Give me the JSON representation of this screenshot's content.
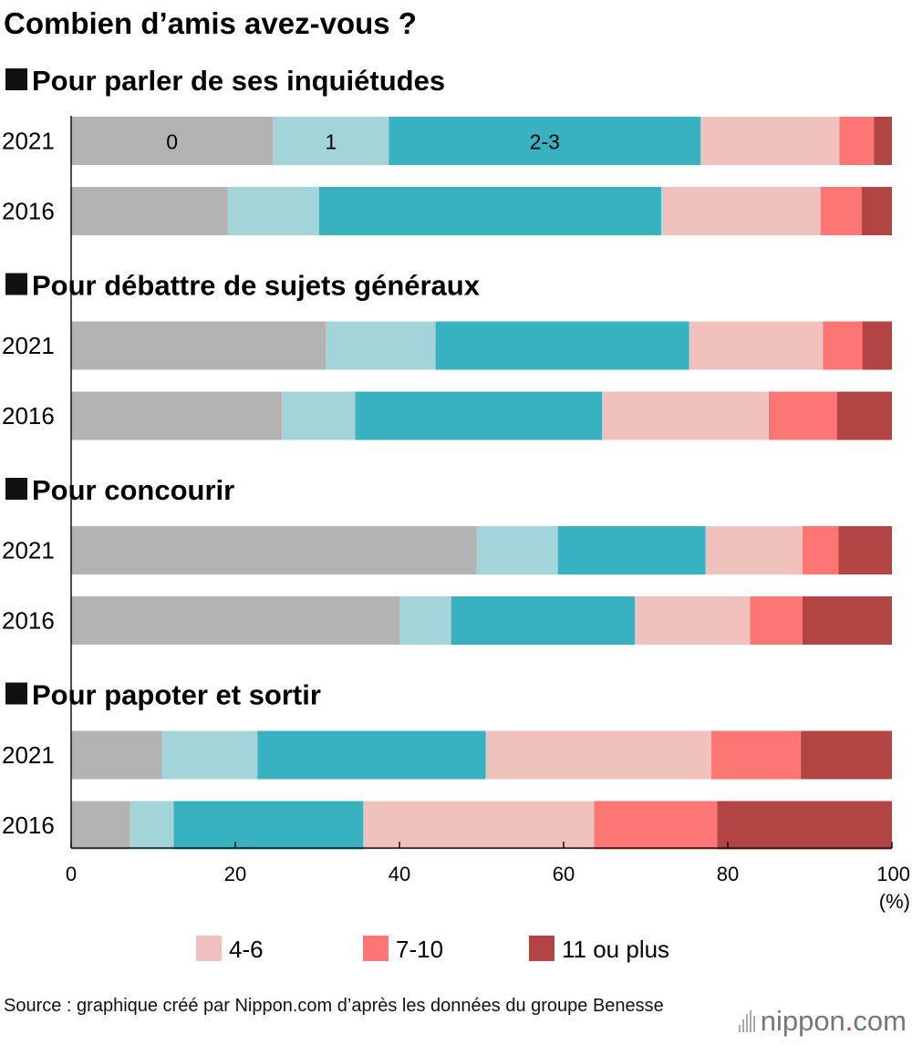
{
  "chart_data": {
    "type": "bar",
    "orientation": "horizontal",
    "stacked": true,
    "title": "Combien d’amis avez-vous ?",
    "x_unit": "(%)",
    "xlim": [
      0,
      100
    ],
    "x_ticks": [
      "0",
      "20",
      "40",
      "60",
      "80",
      "100"
    ],
    "categories": [
      "0",
      "1",
      "2-3",
      "4-6",
      "7-10",
      "11 ou plus"
    ],
    "colors": [
      "#b3b3b3",
      "#a3d4da",
      "#38b1c0",
      "#f1c1be",
      "#fd7673",
      "#b24443"
    ],
    "legend": [
      "4-6",
      "7-10",
      "11 ou plus"
    ],
    "segment_labels_first_bar": [
      "0",
      "1",
      "2-3"
    ],
    "panels": [
      {
        "title": "Pour parler de ses inquiétudes",
        "bars": [
          {
            "year": "2021",
            "values": [
              24.6,
              14.1,
              38.0,
              16.9,
              4.2,
              2.2
            ]
          },
          {
            "year": "2016",
            "values": [
              19.1,
              11.1,
              41.7,
              19.4,
              5.0,
              3.7
            ]
          }
        ]
      },
      {
        "title": "Pour débattre de sujets généraux",
        "bars": [
          {
            "year": "2021",
            "values": [
              31.0,
              13.4,
              30.9,
              16.3,
              4.8,
              3.6
            ]
          },
          {
            "year": "2016",
            "values": [
              25.7,
              8.9,
              30.1,
              20.3,
              8.3,
              6.7
            ]
          }
        ]
      },
      {
        "title": "Pour concourir",
        "bars": [
          {
            "year": "2021",
            "values": [
              49.4,
              9.9,
              18.0,
              11.8,
              4.4,
              6.5
            ]
          },
          {
            "year": "2016",
            "values": [
              40.0,
              6.3,
              22.4,
              14.0,
              6.4,
              10.9
            ]
          }
        ]
      },
      {
        "title": "Pour papoter et sortir",
        "bars": [
          {
            "year": "2021",
            "values": [
              11.1,
              11.6,
              27.8,
              27.5,
              10.9,
              11.1
            ]
          },
          {
            "year": "2016",
            "values": [
              7.2,
              5.3,
              23.1,
              28.1,
              15.0,
              21.3
            ]
          }
        ]
      }
    ]
  },
  "footer": {
    "source": "Source : graphique créé par Nippon.com d’après les données du groupe Benesse",
    "logo_main": "nippon",
    "logo_dot": ".",
    "logo_tail": "com"
  }
}
